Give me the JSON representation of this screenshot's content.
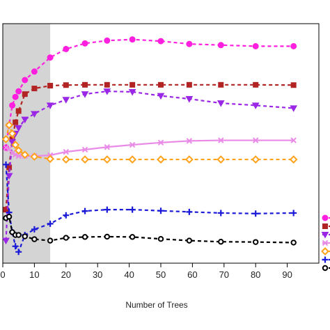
{
  "chart_data": {
    "type": "line",
    "xlabel": "Number of Trees",
    "ylabel": "",
    "xlim": [
      0,
      100
    ],
    "x_ticks": [
      0,
      10,
      20,
      30,
      40,
      50,
      60,
      70,
      80,
      90
    ],
    "x_tick_labels": [
      "0",
      "10",
      "20",
      "30",
      "40",
      "50",
      "60",
      "70",
      "80",
      "90"
    ],
    "shaded_region": {
      "x_from": 0,
      "x_to": 15,
      "color": "#d4d4d4"
    },
    "legend_position": "right (cropped)",
    "grid": false,
    "series": [
      {
        "color": "#ff1fde",
        "marker": "filled-circle",
        "line_style": "dashed",
        "x": [
          1,
          2,
          3,
          4,
          5,
          7,
          10,
          15,
          20,
          26,
          33,
          41,
          50,
          59,
          69,
          80,
          92
        ],
        "y": [
          56,
          64,
          71,
          74,
          76,
          80,
          83,
          88,
          91,
          93,
          94,
          94.4,
          93.8,
          92.8,
          92.4,
          92,
          92
        ]
      },
      {
        "color": "#b22424",
        "marker": "filled-square",
        "line_style": "dashed",
        "x": [
          1,
          2,
          3,
          4,
          5,
          7,
          10,
          15,
          20,
          26,
          33,
          41,
          50,
          59,
          69,
          80,
          92
        ],
        "y": [
          34,
          49,
          59,
          65,
          69,
          75,
          77,
          78,
          78.2,
          78.3,
          78.3,
          78.3,
          78.3,
          78.3,
          78.3,
          78.3,
          78.2
        ]
      },
      {
        "color": "#9a27e6",
        "marker": "filled-triangle-down",
        "line_style": "dashed",
        "x": [
          1,
          2,
          3,
          4,
          5,
          7,
          10,
          15,
          20,
          26,
          33,
          41,
          50,
          59,
          69,
          80,
          92
        ],
        "y": [
          23,
          46,
          58,
          61,
          63,
          66,
          68,
          71,
          73,
          75,
          76,
          75.8,
          74.4,
          73.3,
          71.8,
          71,
          70
        ]
      },
      {
        "color": "#e98be6",
        "marker": "x",
        "line_style": "solid",
        "x": [
          1,
          2,
          3,
          4,
          5,
          7,
          10,
          15,
          20,
          26,
          33,
          41,
          50,
          59,
          69,
          80,
          92
        ],
        "y": [
          56,
          55.5,
          54,
          53.5,
          53,
          53,
          53,
          53.3,
          54.5,
          55.3,
          56.2,
          57,
          57.8,
          58.4,
          58.6,
          58.6,
          58.6
        ]
      },
      {
        "color": "#ffa21a",
        "marker": "open-diamond",
        "line_style": "dashed",
        "x": [
          1,
          2,
          3,
          4,
          5,
          7,
          10,
          15,
          20,
          26,
          33,
          41,
          50,
          59,
          69,
          80,
          92
        ],
        "y": [
          59,
          64,
          61,
          57,
          55,
          53.5,
          52.8,
          52,
          51.8,
          51.8,
          51.8,
          51.8,
          51.8,
          51.8,
          51.8,
          51.8,
          51.8
        ]
      },
      {
        "color": "#1a1ad8",
        "marker": "plus",
        "line_style": "dashed",
        "x": [
          1,
          2,
          3,
          4,
          5,
          7,
          10,
          15,
          20,
          26,
          33,
          41,
          50,
          59,
          69,
          80,
          92
        ],
        "y": [
          50,
          33,
          26,
          21,
          19,
          25,
          27,
          29,
          32,
          33.5,
          34,
          34,
          33.6,
          33.2,
          32.8,
          32.6,
          32.8
        ]
      },
      {
        "color": "#000000",
        "marker": "open-circle",
        "line_style": "dashed",
        "x": [
          1,
          2,
          3,
          4,
          5,
          7,
          10,
          15,
          20,
          26,
          33,
          41,
          50,
          59,
          69,
          80,
          92
        ],
        "y": [
          31,
          31.5,
          26,
          25,
          25,
          24.5,
          23.5,
          23,
          24,
          24.3,
          24.4,
          24.3,
          23.6,
          23,
          22.6,
          22.5,
          22.3
        ]
      }
    ]
  }
}
